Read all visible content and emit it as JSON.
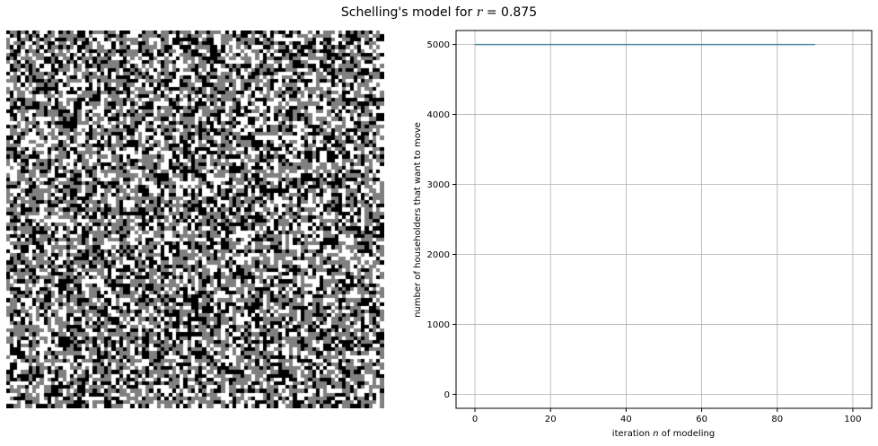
{
  "title": {
    "prefix": "Schelling's model for ",
    "variable": "r",
    "suffix": " = 0.875"
  },
  "grid": {
    "cells_per_side": 100,
    "colors": {
      "empty": "#ffffff",
      "group_a": "#000000",
      "group_b": "#808080"
    },
    "fractions": {
      "empty": 0.3,
      "group_a": 0.3,
      "group_b": 0.4
    }
  },
  "chart_data": {
    "type": "line",
    "xlabel": {
      "prefix": "iteration ",
      "variable": "n",
      "suffix": " of modeling"
    },
    "ylabel": "number of householders that want to move",
    "xlim": [
      -5,
      105
    ],
    "ylim": [
      -200,
      5200
    ],
    "xticks": [
      0,
      20,
      40,
      60,
      80,
      100
    ],
    "yticks": [
      0,
      1000,
      2000,
      3000,
      4000,
      5000
    ],
    "grid": true,
    "line_color": "#4a8a9a",
    "series": [
      {
        "x": [
          0,
          90
        ],
        "y": [
          5000,
          5000
        ]
      }
    ]
  }
}
